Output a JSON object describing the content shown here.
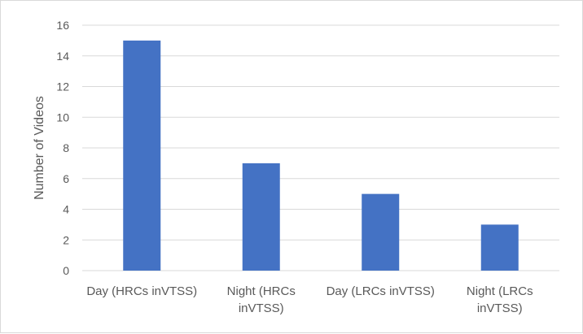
{
  "chart_data": {
    "type": "bar",
    "title": "",
    "xlabel": "",
    "ylabel": "Number of Videos",
    "ylim": [
      0,
      16
    ],
    "yticks": [
      0,
      2,
      4,
      6,
      8,
      10,
      12,
      14,
      16
    ],
    "grid": true,
    "categories": [
      [
        "Day (HRCs inVTSS)"
      ],
      [
        "Night (HRCs",
        "inVTSS)"
      ],
      [
        "Day (LRCs inVTSS)"
      ],
      [
        "Night (LRCs",
        "inVTSS)"
      ]
    ],
    "values": [
      15,
      7,
      5,
      3
    ],
    "bar_color": "#4472c4",
    "grid_color": "#d9d9d9"
  }
}
